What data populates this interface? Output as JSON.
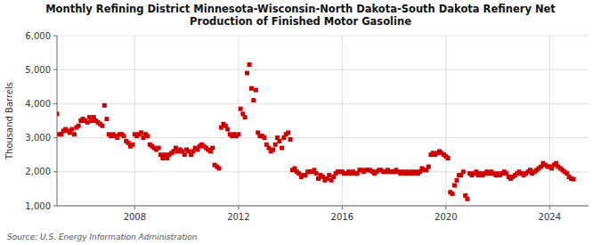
{
  "chart_data": {
    "type": "scatter",
    "title": "Monthly Refining District Minnesota-Wisconsin-North Dakota-South Dakota Refinery Net\nProduction of Finished Motor Gasoline",
    "y_label": "Thousand Barrels",
    "annotations": [
      "Source: U.S. Energy Information Administration"
    ],
    "color": "#cc0000",
    "marker": "square",
    "grid": true,
    "xlim": [
      2005.0,
      2025.5
    ],
    "xticks": [
      2008,
      2012,
      2016,
      2020,
      2024
    ],
    "ylim": [
      1000,
      6000
    ],
    "yticks": [
      {
        "value": 1000,
        "label": "1,000"
      },
      {
        "value": 2000,
        "label": "2,000"
      },
      {
        "value": 3000,
        "label": "3,000"
      },
      {
        "value": 4000,
        "label": "4,000"
      },
      {
        "value": 5000,
        "label": "5,000"
      },
      {
        "value": 6000,
        "label": "6,000"
      }
    ],
    "x": [
      2005.0,
      2005.08,
      2005.17,
      2005.25,
      2005.33,
      2005.42,
      2005.5,
      2005.58,
      2005.67,
      2005.75,
      2005.83,
      2005.92,
      2006.0,
      2006.08,
      2006.17,
      2006.25,
      2006.33,
      2006.42,
      2006.5,
      2006.58,
      2006.67,
      2006.75,
      2006.83,
      2006.92,
      2007.0,
      2007.08,
      2007.17,
      2007.25,
      2007.33,
      2007.42,
      2007.5,
      2007.58,
      2007.67,
      2007.75,
      2007.83,
      2007.92,
      2008.0,
      2008.08,
      2008.17,
      2008.25,
      2008.33,
      2008.42,
      2008.5,
      2008.58,
      2008.67,
      2008.75,
      2008.83,
      2008.92,
      2009.0,
      2009.08,
      2009.17,
      2009.25,
      2009.33,
      2009.42,
      2009.5,
      2009.58,
      2009.67,
      2009.75,
      2009.83,
      2009.92,
      2010.0,
      2010.08,
      2010.17,
      2010.25,
      2010.33,
      2010.42,
      2010.5,
      2010.58,
      2010.67,
      2010.75,
      2010.83,
      2010.92,
      2011.0,
      2011.08,
      2011.17,
      2011.25,
      2011.33,
      2011.42,
      2011.5,
      2011.58,
      2011.67,
      2011.75,
      2011.83,
      2011.92,
      2012.0,
      2012.08,
      2012.17,
      2012.25,
      2012.33,
      2012.42,
      2012.5,
      2012.58,
      2012.67,
      2012.75,
      2012.83,
      2012.92,
      2013.0,
      2013.08,
      2013.17,
      2013.25,
      2013.33,
      2013.42,
      2013.5,
      2013.58,
      2013.67,
      2013.75,
      2013.83,
      2013.92,
      2014.0,
      2014.08,
      2014.17,
      2014.25,
      2014.33,
      2014.42,
      2014.5,
      2014.58,
      2014.67,
      2014.75,
      2014.83,
      2014.92,
      2015.0,
      2015.08,
      2015.17,
      2015.25,
      2015.33,
      2015.42,
      2015.5,
      2015.58,
      2015.67,
      2015.75,
      2015.83,
      2015.92,
      2016.0,
      2016.08,
      2016.17,
      2016.25,
      2016.33,
      2016.42,
      2016.5,
      2016.58,
      2016.67,
      2016.75,
      2016.83,
      2016.92,
      2017.0,
      2017.08,
      2017.17,
      2017.25,
      2017.33,
      2017.42,
      2017.5,
      2017.58,
      2017.67,
      2017.75,
      2017.83,
      2017.92,
      2018.0,
      2018.08,
      2018.17,
      2018.25,
      2018.33,
      2018.42,
      2018.5,
      2018.58,
      2018.67,
      2018.75,
      2018.83,
      2018.92,
      2019.0,
      2019.08,
      2019.17,
      2019.25,
      2019.33,
      2019.42,
      2019.5,
      2019.58,
      2019.67,
      2019.75,
      2019.83,
      2019.92,
      2020.0,
      2020.08,
      2020.17,
      2020.25,
      2020.33,
      2020.42,
      2020.5,
      2020.58,
      2020.67,
      2020.75,
      2020.83,
      2020.92,
      2021.0,
      2021.08,
      2021.17,
      2021.25,
      2021.33,
      2021.42,
      2021.5,
      2021.58,
      2021.67,
      2021.75,
      2021.83,
      2021.92,
      2022.0,
      2022.08,
      2022.17,
      2022.25,
      2022.33,
      2022.42,
      2022.5,
      2022.58,
      2022.67,
      2022.75,
      2022.83,
      2022.92,
      2023.0,
      2023.08,
      2023.17,
      2023.25,
      2023.33,
      2023.42,
      2023.5,
      2023.58,
      2023.67,
      2023.75,
      2023.83,
      2023.92,
      2024.0,
      2024.08,
      2024.17,
      2024.25,
      2024.33,
      2024.42,
      2024.5,
      2024.58,
      2024.67,
      2024.75,
      2024.83,
      2024.92
    ],
    "values": [
      3700,
      3100,
      3100,
      3200,
      3250,
      3200,
      3150,
      3250,
      3100,
      3300,
      3350,
      3500,
      3550,
      3500,
      3450,
      3600,
      3500,
      3600,
      3500,
      3450,
      3400,
      3350,
      3950,
      3550,
      3100,
      3050,
      3100,
      3050,
      3000,
      3100,
      3100,
      3050,
      2900,
      2850,
      2750,
      2800,
      3100,
      3050,
      3100,
      3150,
      3000,
      3100,
      3050,
      2800,
      2750,
      2700,
      2650,
      2700,
      2500,
      2400,
      2500,
      2400,
      2500,
      2550,
      2600,
      2700,
      2600,
      2650,
      2600,
      2500,
      2650,
      2600,
      2500,
      2600,
      2700,
      2650,
      2750,
      2800,
      2750,
      2700,
      2650,
      2600,
      2700,
      2200,
      2150,
      2100,
      3300,
      3400,
      3350,
      3250,
      3100,
      3050,
      3100,
      3050,
      3100,
      3850,
      3700,
      3600,
      4900,
      5150,
      4450,
      4100,
      4400,
      3150,
      3050,
      3050,
      3000,
      2800,
      2700,
      2600,
      2650,
      2800,
      3000,
      2900,
      2700,
      3000,
      3100,
      3150,
      2950,
      2050,
      2100,
      2000,
      1950,
      1850,
      1900,
      1900,
      2000,
      2000,
      2000,
      2050,
      1950,
      1800,
      1900,
      1850,
      1750,
      1800,
      1900,
      1750,
      1850,
      1950,
      2000,
      2000,
      2000,
      1950,
      1950,
      2000,
      1950,
      2000,
      1950,
      1950,
      2050,
      2050,
      2000,
      2050,
      2050,
      2050,
      2000,
      1950,
      2000,
      2050,
      2050,
      2000,
      2000,
      2050,
      2000,
      2000,
      2000,
      2050,
      2000,
      1950,
      2000,
      1950,
      2000,
      1950,
      2000,
      1950,
      2000,
      1950,
      2000,
      2100,
      2050,
      2050,
      2150,
      2500,
      2550,
      2500,
      2550,
      2600,
      2550,
      2500,
      2450,
      2400,
      1400,
      1350,
      1600,
      1750,
      1900,
      1900,
      2000,
      1300,
      1200,
      1950,
      1900,
      1950,
      2000,
      1900,
      1950,
      1900,
      1950,
      2000,
      1950,
      2000,
      1950,
      1900,
      1950,
      1900,
      1950,
      2000,
      1950,
      1850,
      1800,
      1850,
      1900,
      1950,
      2000,
      1950,
      1900,
      1950,
      2000,
      2050,
      1950,
      2000,
      2050,
      2100,
      2150,
      2250,
      2200,
      2150,
      2150,
      2100,
      2200,
      2250,
      2150,
      2100,
      2050,
      2000,
      1950,
      1850,
      1800,
      1780
    ]
  }
}
